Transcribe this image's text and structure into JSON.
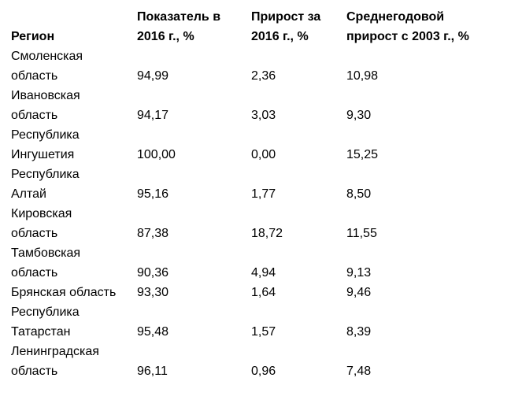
{
  "table": {
    "header": [
      "Регион",
      "Показатель в 2016 г., %",
      "Прирост за 2016 г., %",
      "Среднегодовой прирост с 2003 г., %"
    ],
    "rows": [
      [
        "Смоленская область",
        "94,99",
        "2,36",
        "10,98"
      ],
      [
        "Ивановская область",
        "94,17",
        "3,03",
        "9,30"
      ],
      [
        "Республика Ингушетия",
        "100,00",
        "0,00",
        "15,25"
      ],
      [
        "Республика Алтай",
        "95,16",
        "1,77",
        "8,50"
      ],
      [
        "Кировская область",
        "87,38",
        "18,72",
        "11,55"
      ],
      [
        "Тамбовская область",
        "90,36",
        "4,94",
        "9,13"
      ],
      [
        "Брянская область",
        "93,30",
        "1,64",
        "9,46"
      ],
      [
        "Республика Татарстан",
        "95,48",
        "1,57",
        "8,39"
      ],
      [
        "Ленинградская область",
        "96,11",
        "0,96",
        "7,48"
      ]
    ]
  }
}
